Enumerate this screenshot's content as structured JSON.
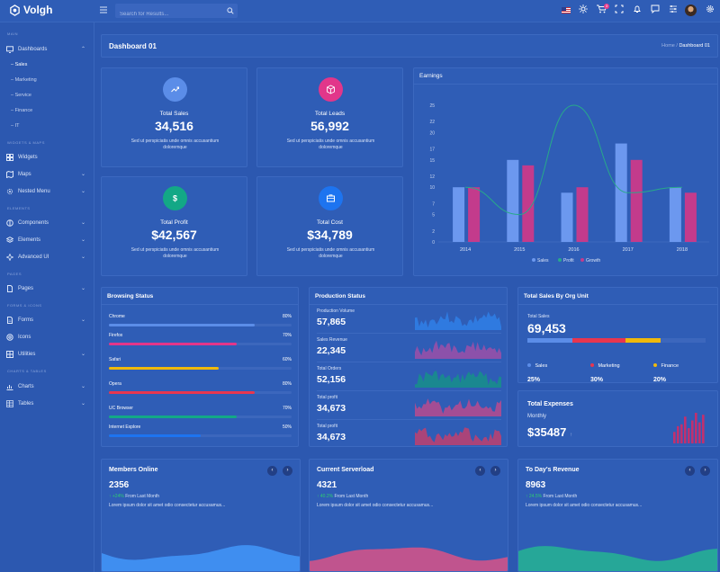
{
  "brand": {
    "name": "Volgh"
  },
  "search": {
    "placeholder": "Search for Results..."
  },
  "topbar": {
    "cart_count": "3"
  },
  "sidebar": {
    "sections": {
      "main": "MAIN",
      "widgets": "WIDGETS & MAPS",
      "elements": "ELEMENTS",
      "pages": "PAGES",
      "forms": "FORMS & ICONS",
      "charts": "CHARTS & TABLES"
    },
    "items": {
      "dashboards": "Dashboards",
      "widgets": "Widgets",
      "maps": "Maps",
      "nested": "Nested Menu",
      "components": "Components",
      "elements": "Elements",
      "advanced": "Advanced UI",
      "pages": "Pages",
      "forms": "Forms",
      "icons": "Icons",
      "utilities": "Utilities",
      "charts": "Charts",
      "tables": "Tables"
    },
    "subitems": [
      "Sales",
      "Marketing",
      "Service",
      "Finance",
      "IT"
    ]
  },
  "page": {
    "title": "Dashboard 01",
    "crumb_home": "Home",
    "crumb_sep": "/",
    "crumb_current": "Dashboard 01"
  },
  "kpis": [
    {
      "label": "Total Sales",
      "value": "34,516",
      "desc": "Sed ut perspiciatis unde omnis accusantium doloremque",
      "color": "#5b8de8",
      "icon": "trend-icon"
    },
    {
      "label": "Total Leads",
      "value": "56,992",
      "desc": "Sed ut perspiciatis unde omnis accusantium doloremque",
      "color": "#e2368a",
      "icon": "cube-icon"
    },
    {
      "label": "Total Profit",
      "value": "$42,567",
      "desc": "Sed ut perspiciatis unde omnis accusantium doloremque",
      "color": "#13a886",
      "icon": "dollar-icon"
    },
    {
      "label": "Total Cost",
      "value": "$34,789",
      "desc": "Sed ut perspiciatis unde omnis accusantium doloremque",
      "color": "#1d74f0",
      "icon": "briefcase-icon"
    }
  ],
  "earnings": {
    "title": "Earnings"
  },
  "chart_data": {
    "type": "bar",
    "title": "Earnings",
    "categories": [
      "2014",
      "2015",
      "2016",
      "2017",
      "2018"
    ],
    "ylim": [
      0,
      25
    ],
    "yticks": [
      0,
      2,
      5,
      7,
      10,
      12,
      15,
      17,
      20,
      22,
      25
    ],
    "series": [
      {
        "name": "Sales",
        "type": "bar",
        "color": "#6c98ef",
        "values": [
          10,
          15,
          9,
          18,
          10
        ]
      },
      {
        "name": "Profit",
        "type": "line",
        "color": "#28a98a",
        "values": [
          10,
          5,
          25,
          9,
          10
        ]
      },
      {
        "name": "Growth",
        "type": "bar",
        "color": "#c33b8c",
        "values": [
          10,
          14,
          10,
          15,
          9
        ]
      }
    ],
    "legend": "bottom"
  },
  "browsing": {
    "title": "Browsing Status",
    "rows": [
      {
        "name": "Chrome",
        "pct": "80%",
        "value": 80,
        "color": "#5b8de8"
      },
      {
        "name": "Firefox",
        "pct": "70%",
        "value": 70,
        "color": "#e2368a"
      },
      {
        "name": "Safari",
        "pct": "60%",
        "value": 60,
        "color": "#f0b90b"
      },
      {
        "name": "Opera",
        "pct": "80%",
        "value": 80,
        "color": "#e8364f"
      },
      {
        "name": "UC Browser",
        "pct": "70%",
        "value": 70,
        "color": "#13a886"
      },
      {
        "name": "Internet Explore",
        "pct": "50%",
        "value": 50,
        "color": "#1d74f0"
      }
    ]
  },
  "production": {
    "title": "Production Status",
    "rows": [
      {
        "name": "Production Volume",
        "value": "57,865",
        "color": "#2f7fe8"
      },
      {
        "name": "Sales Revenue",
        "value": "22,345",
        "color": "#9c4fa8"
      },
      {
        "name": "Total Orders",
        "value": "52,156",
        "color": "#168f8a"
      },
      {
        "name": "Total profit",
        "value": "34,673",
        "color": "#b94a8e"
      },
      {
        "name": "Total profit",
        "value": "34,673",
        "color": "#c0406f"
      }
    ]
  },
  "org": {
    "title": "Total Sales By Org Unit",
    "label": "Total Sales",
    "value": "69,453",
    "items": [
      {
        "name": "Sales",
        "pct": "25%",
        "value": 25,
        "color": "#5b8de8"
      },
      {
        "name": "Marketing",
        "pct": "30%",
        "value": 30,
        "color": "#e8364f"
      },
      {
        "name": "Finance",
        "pct": "20%",
        "value": 20,
        "color": "#f0b90b"
      }
    ]
  },
  "expenses": {
    "title": "Total Expenses",
    "sub": "Monthly",
    "value": "$35487",
    "bars": [
      6,
      9,
      10,
      14,
      8,
      12,
      16,
      11,
      15
    ]
  },
  "bottom": [
    {
      "title": "Members Online",
      "value": "2356",
      "delta": "+24%",
      "from": "From Last Month",
      "text": "Lorem ipsum dolor sit amet odio consectetur accusamus...",
      "color": "#3f8ef0"
    },
    {
      "title": "Current Serverload",
      "value": "4321",
      "delta": "40.2%",
      "from": "From Last Month",
      "text": "Lorem ipsum dolor sit amet odio consectetur accusamus...",
      "color": "#c0548e"
    },
    {
      "title": "To Day's Revenue",
      "value": "8963",
      "delta": "24.5%",
      "from": "From Last Month",
      "text": "Lorem ipsum dolor sit amet odio consectetur accusamus...",
      "color": "#26a798"
    }
  ]
}
